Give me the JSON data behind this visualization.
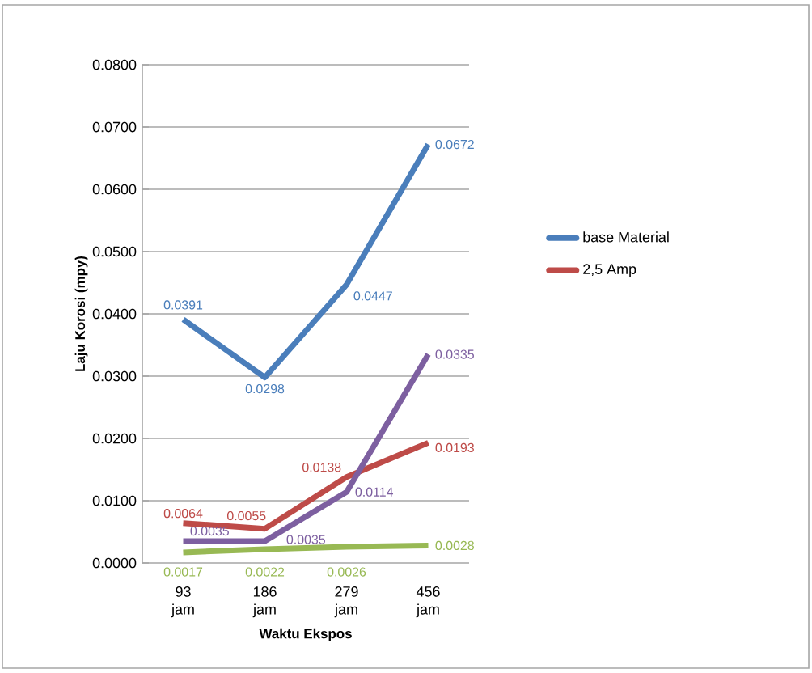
{
  "chart_data": {
    "type": "line",
    "xlabel": "Waktu Ekspos",
    "ylabel": "Laju Korosi (mpy)",
    "categories": [
      "93 jam",
      "186 jam",
      "279 jam",
      "456 jam"
    ],
    "series": [
      {
        "name": "base Material",
        "color": "#4a7ebb",
        "values": [
          0.0391,
          0.0298,
          0.0447,
          0.0672
        ]
      },
      {
        "name": "2,5 Amp",
        "color": "#be4b48",
        "values": [
          0.0064,
          0.0055,
          0.0138,
          0.0193
        ]
      },
      {
        "color": "#7d5fa0",
        "values": [
          0.0035,
          0.0035,
          0.0114,
          0.0335
        ]
      },
      {
        "color": "#98b954",
        "values": [
          0.0017,
          0.0022,
          0.0026,
          0.0028
        ]
      }
    ],
    "ylim": [
      0,
      0.08
    ],
    "yticks": [
      {
        "value": 0,
        "label": "0.0000"
      },
      {
        "value": 0.01,
        "label": "0.0100"
      },
      {
        "value": 0.02,
        "label": "0.0200"
      },
      {
        "value": 0.03,
        "label": "0.0300"
      },
      {
        "value": 0.04,
        "label": "0.0400"
      },
      {
        "value": 0.05,
        "label": "0.0500"
      },
      {
        "value": 0.06,
        "label": "0.0600"
      },
      {
        "value": 0.07,
        "label": "0.0700"
      },
      {
        "value": 0.08,
        "label": "0.0800"
      }
    ],
    "grid": "y",
    "legend": "right",
    "marker": "none",
    "line_style": "solid",
    "data_labels": true
  }
}
